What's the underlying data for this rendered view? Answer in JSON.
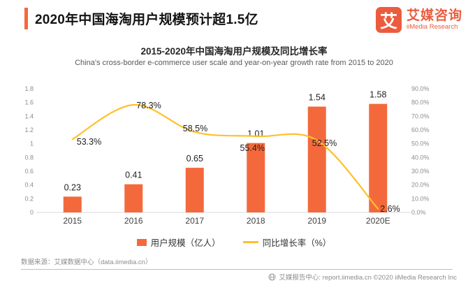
{
  "header": {
    "title": "2020年中国海淘用户规模预计超1.5亿",
    "logo": {
      "mark": "艾",
      "name_cn": "艾媒咨询",
      "name_en": "iiMedia Research"
    }
  },
  "chart": {
    "title": "2015-2020年中国海淘用户规模及同比增长率",
    "subtitle": "China's cross-border e-commerce user scale and year-on-year growth rate from 2015 to 2020"
  },
  "chart_data": {
    "type": "bar",
    "subtype": "bar+line combo, dual axis",
    "categories": [
      "2015",
      "2016",
      "2017",
      "2018",
      "2019",
      "2020E"
    ],
    "series": [
      {
        "name": "用户规模（亿人）",
        "type": "bar",
        "axis": "left",
        "values": [
          0.23,
          0.41,
          0.65,
          1.01,
          1.54,
          1.58
        ],
        "labels": [
          "0.23",
          "0.41",
          "0.65",
          "1.01",
          "1.54",
          "1.58"
        ],
        "color": "#F4693C"
      },
      {
        "name": "同比增长率（%）",
        "type": "line",
        "axis": "right",
        "values": [
          53.3,
          78.3,
          58.5,
          55.4,
          52.5,
          2.6
        ],
        "labels": [
          "53.3%",
          "78.3%",
          "58.5%",
          "55.4%",
          "52.5%",
          "2.6%"
        ],
        "color": "#FFC02C"
      }
    ],
    "left_axis": {
      "min": 0,
      "max": 1.8,
      "ticks": [
        "0",
        "0.2",
        "0.4",
        "0.6",
        "0.8",
        "1",
        "1.2",
        "1.4",
        "1.6",
        "1.8"
      ]
    },
    "right_axis": {
      "min": 0,
      "max": 90,
      "ticks": [
        "0.0%",
        "10.0%",
        "20.0%",
        "30.0%",
        "40.0%",
        "50.0%",
        "60.0%",
        "70.0%",
        "80.0%",
        "90.0%"
      ]
    },
    "grid": false,
    "legend_position": "bottom"
  },
  "source_note": "数据来源：艾媒数据中心（data.iimedia.cn）",
  "footer": {
    "text": "艾媒报告中心: report.iimedia.cn   ©2020  iiMedia Research Inc"
  },
  "colors": {
    "accent": "#F4693C",
    "bar": "#F4693C",
    "line": "#FFC02C",
    "logo": "#EB5C3E",
    "axis_text": "#8C8C8C",
    "axis_line": "#D9D9D9",
    "x_label": "#404040",
    "data_label": "#1F1F1F"
  }
}
